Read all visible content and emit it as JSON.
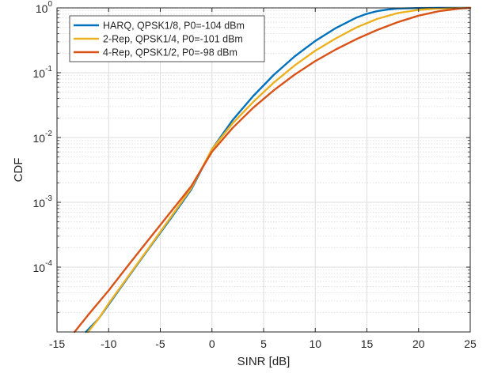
{
  "chart_data": {
    "type": "line",
    "title": "",
    "xlabel": "SINR [dB]",
    "ylabel": "CDF",
    "xlim": [
      -15,
      25
    ],
    "ylim": [
      1e-05,
      1
    ],
    "yscale": "log",
    "grid": true,
    "minor_grid": true,
    "legend_position": "top-left",
    "x_ticks": [
      -15,
      -10,
      -5,
      0,
      5,
      10,
      15,
      20,
      25
    ],
    "x_tick_labels": [
      "-15",
      "-10",
      "-5",
      "0",
      "5",
      "10",
      "15",
      "20",
      "25"
    ],
    "y_ticks": [
      0.0001,
      0.001,
      0.01,
      0.1,
      1
    ],
    "y_tick_labels": [
      {
        "base": "10",
        "exp": "-4"
      },
      {
        "base": "10",
        "exp": "-3"
      },
      {
        "base": "10",
        "exp": "-2"
      },
      {
        "base": "10",
        "exp": "-1"
      },
      {
        "base": "10",
        "exp": "0"
      }
    ],
    "series": [
      {
        "name": "HARQ, QPSK1/8, P0=-104 dBm",
        "color": "#0072bd",
        "x": [
          -12.2,
          -11,
          -10,
          -8,
          -6,
          -4,
          -2,
          0,
          2,
          4,
          6,
          8,
          10,
          12,
          14,
          15,
          16,
          17,
          18,
          20,
          22,
          25
        ],
        "y": [
          1e-05,
          1.58e-05,
          2.65e-05,
          7.41e-05,
          0.000204,
          0.000562,
          0.00158,
          0.00661,
          0.0186,
          0.0437,
          0.0933,
          0.178,
          0.309,
          0.49,
          0.71,
          0.813,
          0.891,
          0.944,
          0.977,
          0.995,
          1.0,
          1.0
        ]
      },
      {
        "name": "2-Rep, QPSK1/4, P0=-101 dBm",
        "color": "#edb120",
        "x": [
          -12,
          -11,
          -10,
          -8,
          -6,
          -4,
          -2,
          0,
          2,
          4,
          6,
          8,
          10,
          12,
          14,
          16,
          18,
          20,
          22,
          25
        ],
        "y": [
          1e-05,
          1.58e-05,
          2.75e-05,
          7.59e-05,
          0.000209,
          0.000589,
          0.00166,
          0.00661,
          0.0166,
          0.0355,
          0.0708,
          0.129,
          0.219,
          0.339,
          0.5,
          0.676,
          0.832,
          0.933,
          0.98,
          1.0
        ]
      },
      {
        "name": "4-Rep, QPSK1/2, P0=-98 dBm",
        "color": "#d95319",
        "x": [
          -13.3,
          -12,
          -10,
          -8,
          -6,
          -4,
          -2,
          0,
          2,
          4,
          6,
          8,
          10,
          12,
          14,
          16,
          18,
          20,
          22,
          24,
          25
        ],
        "y": [
          1e-05,
          1.82e-05,
          4.37e-05,
          0.000112,
          0.000282,
          0.000708,
          0.00178,
          0.00603,
          0.0141,
          0.0288,
          0.0537,
          0.0933,
          0.151,
          0.229,
          0.331,
          0.457,
          0.603,
          0.759,
          0.891,
          0.977,
          1.0
        ]
      }
    ]
  }
}
